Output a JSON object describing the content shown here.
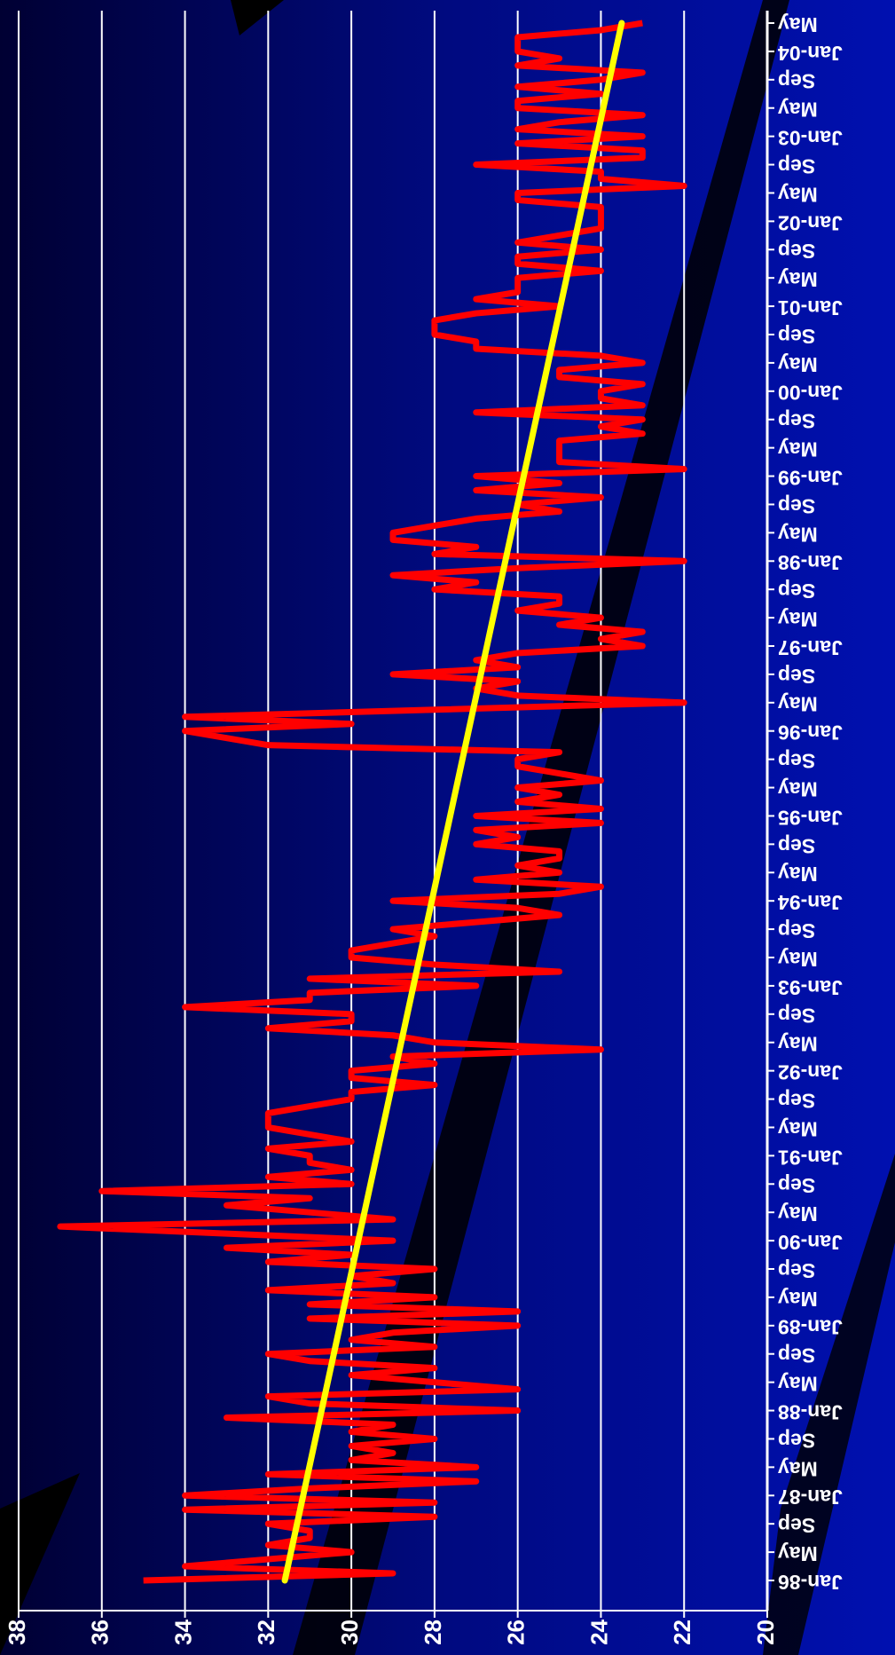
{
  "chart_data": {
    "type": "line",
    "categories": [
      "Jan-86",
      null,
      null,
      null,
      "May",
      null,
      null,
      null,
      "Sep",
      null,
      null,
      null,
      "Jan-87",
      null,
      null,
      null,
      "May",
      null,
      null,
      null,
      "Sep",
      null,
      null,
      null,
      "Jan-88",
      null,
      null,
      null,
      "May",
      null,
      null,
      null,
      "Sep",
      null,
      null,
      null,
      "Jan-89",
      null,
      null,
      null,
      "May",
      null,
      null,
      null,
      "Sep",
      null,
      null,
      null,
      "Jan-90",
      null,
      null,
      null,
      "May",
      null,
      null,
      null,
      "Sep",
      null,
      null,
      null,
      "Jan-91",
      null,
      null,
      null,
      "May",
      null,
      null,
      null,
      "Sep",
      null,
      null,
      null,
      "Jan-92",
      null,
      null,
      null,
      "May",
      null,
      null,
      null,
      "Sep",
      null,
      null,
      null,
      "Jan-93",
      null,
      null,
      null,
      "May",
      null,
      null,
      null,
      "Sep",
      null,
      null,
      null,
      "Jan-94",
      null,
      null,
      null,
      "May",
      null,
      null,
      null,
      "Sep",
      null,
      null,
      null,
      "Jan-95",
      null,
      null,
      null,
      "May",
      null,
      null,
      null,
      "Sep",
      null,
      null,
      null,
      "Jan-96",
      null,
      null,
      null,
      "May",
      null,
      null,
      null,
      "Sep",
      null,
      null,
      null,
      "Jan-97",
      null,
      null,
      null,
      "May",
      null,
      null,
      null,
      "Sep",
      null,
      null,
      null,
      "Jan-98",
      null,
      null,
      null,
      "May",
      null,
      null,
      null,
      "Sep",
      null,
      null,
      null,
      "Jan-99",
      null,
      null,
      null,
      "May",
      null,
      null,
      null,
      "Sep",
      null,
      null,
      null,
      "Jan-00",
      null,
      null,
      null,
      "May",
      null,
      null,
      null,
      "Sep",
      null,
      null,
      null,
      "Jan-01",
      null,
      null,
      null,
      "May",
      null,
      null,
      null,
      "Sep",
      null,
      null,
      null,
      "Jan-02",
      null,
      null,
      null,
      "May",
      null,
      null,
      null,
      "Sep",
      null,
      null,
      null,
      "Jan-03",
      null,
      null,
      null,
      "May",
      null,
      null,
      null,
      "Sep",
      null,
      null,
      null,
      "Jan-04",
      null,
      null,
      null,
      "May"
    ],
    "series": [
      {
        "color": "#ff0000",
        "values": [
          35,
          29,
          34,
          32,
          30,
          32,
          31,
          31,
          32,
          28,
          34,
          28,
          34,
          31,
          27,
          32,
          27,
          30,
          29,
          30,
          28,
          30,
          29,
          33,
          26,
          31,
          32,
          26,
          28,
          30,
          28,
          31,
          32,
          28,
          30,
          29,
          26,
          31,
          26,
          31,
          28,
          32,
          29,
          30,
          28,
          32,
          30,
          33,
          29,
          33,
          37,
          29,
          31,
          33,
          31,
          36,
          30,
          32,
          30,
          31,
          31,
          32,
          30,
          31,
          32,
          32,
          32,
          31,
          30,
          30,
          28,
          30,
          30,
          28,
          29,
          24,
          28,
          29,
          32,
          30,
          30,
          34,
          31,
          31,
          27,
          31,
          25,
          28,
          30,
          30,
          29,
          28,
          29,
          27,
          25,
          26,
          29,
          25,
          24,
          27,
          25,
          26,
          25,
          25,
          27,
          26,
          27,
          24,
          27,
          24,
          26,
          25,
          26,
          24,
          25,
          26,
          26,
          25,
          32,
          33,
          34,
          30,
          34,
          28,
          22,
          26,
          27,
          26,
          29,
          26,
          27,
          26,
          23,
          24,
          23,
          25,
          24,
          26,
          25,
          25,
          28,
          27,
          29,
          26,
          22,
          28,
          27,
          29,
          29,
          28,
          27,
          25,
          26,
          24,
          27,
          25,
          27,
          22,
          25,
          25,
          25,
          25,
          23,
          24,
          23,
          27,
          23,
          24,
          24,
          23,
          25,
          25,
          23,
          24,
          27,
          27,
          28,
          28,
          28,
          27,
          25,
          27,
          26,
          26,
          26,
          24,
          26,
          26,
          24,
          26,
          25,
          24,
          24,
          24,
          24,
          26,
          26,
          22,
          24,
          24,
          27,
          23,
          23,
          26,
          23,
          26,
          25,
          23,
          26,
          26,
          24,
          26,
          24,
          23,
          26,
          25,
          26,
          26,
          26,
          24,
          23
        ]
      }
    ],
    "trendline": {
      "color": "#ffff00",
      "values": [
        31.6,
        23.5
      ]
    },
    "ylim": [
      20,
      38
    ],
    "yticks": [
      20,
      22,
      24,
      26,
      28,
      30,
      32,
      34,
      36,
      38
    ],
    "grid": true
  }
}
